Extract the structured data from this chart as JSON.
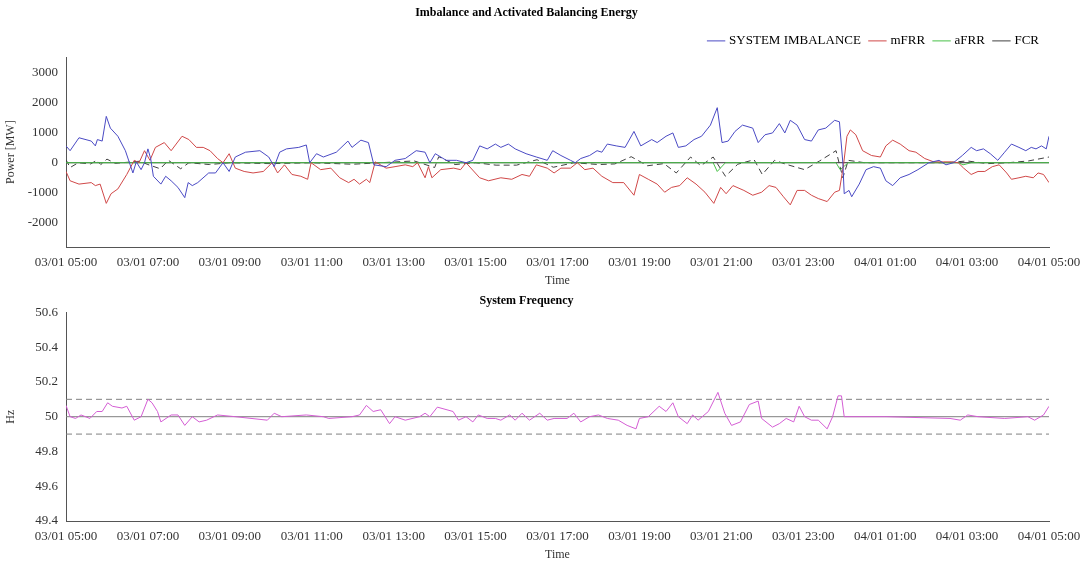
{
  "chart_data": [
    {
      "type": "line",
      "title": "Imbalance and Activated Balancing Energy",
      "xlabel": "Time",
      "ylabel": "Power [MW]",
      "marker": "none",
      "legend": "top right",
      "xlim": [
        "--01-03T05:00",
        "--01-04T05:00"
      ],
      "xticks": [
        {
          "value": "--01-03T05:00",
          "label": "03/01 05:00"
        },
        {
          "value": "--01-03T07:00",
          "label": "03/01 07:00"
        },
        {
          "value": "--01-03T09:00",
          "label": "03/01 09:00"
        },
        {
          "value": "--01-03T11:00",
          "label": "03/01 11:00"
        },
        {
          "value": "--01-03T13:00",
          "label": "03/01 13:00"
        },
        {
          "value": "--01-03T15:00",
          "label": "03/01 15:00"
        },
        {
          "value": "--01-03T17:00",
          "label": "03/01 17:00"
        },
        {
          "value": "--01-03T19:00",
          "label": "03/01 19:00"
        },
        {
          "value": "--01-03T21:00",
          "label": "03/01 21:00"
        },
        {
          "value": "--01-03T23:00",
          "label": "03/01 23:00"
        },
        {
          "value": "--01-04T01:00",
          "label": "04/01 01:00"
        },
        {
          "value": "--01-04T03:00",
          "label": "04/01 03:00"
        },
        {
          "value": "--01-04T05:00",
          "label": "04/01 05:00"
        }
      ],
      "ylim": [
        -2800,
        3500
      ],
      "yticks": [
        -2000,
        -1000,
        0,
        1000,
        2000,
        3000
      ],
      "ref_lines": [
        {
          "axis": "y",
          "value": 0,
          "color": "#303030",
          "line_style": "solid"
        }
      ],
      "series": [
        {
          "name": "SYSTEM IMBALANCE",
          "color": "#4a4ac4",
          "line_style": "solid",
          "x": [
            "--01-03T05:00",
            "--01-03T05:06",
            "--01-03T05:19",
            "--01-03T05:37",
            "--01-03T05:43",
            "--01-03T05:46",
            "--01-03T05:53",
            "--01-03T05:59",
            "--01-03T06:05",
            "--01-03T06:16",
            "--01-03T06:27",
            "--01-03T06:38",
            "--01-03T06:43",
            "--01-03T06:50",
            "--01-03T06:55",
            "--01-03T07:00",
            "--01-03T07:04",
            "--01-03T07:08",
            "--01-03T07:19",
            "--01-03T07:26",
            "--01-03T07:34",
            "--01-03T07:44",
            "--01-03T07:54",
            "--01-03T07:59",
            "--01-03T08:05",
            "--01-03T08:13",
            "--01-03T08:29",
            "--01-03T08:39",
            "--01-03T08:50",
            "--01-03T08:59",
            "--01-03T09:08",
            "--01-03T09:23",
            "--01-03T09:44",
            "--01-03T09:57",
            "--01-03T10:05",
            "--01-03T10:13",
            "--01-03T10:23",
            "--01-03T10:41",
            "--01-03T10:52",
            "--01-03T10:57",
            "--01-03T11:07",
            "--01-03T11:17",
            "--01-03T11:36",
            "--01-03T11:53",
            "--01-03T11:59",
            "--01-03T12:12",
            "--01-03T12:23",
            "--01-03T12:31",
            "--01-03T12:49",
            "--01-03T13:02",
            "--01-03T13:17",
            "--01-03T13:33",
            "--01-03T13:46",
            "--01-03T13:53",
            "--01-03T14:01",
            "--01-03T14:17",
            "--01-03T14:32",
            "--01-03T14:46",
            "--01-03T14:56",
            "--01-03T15:06",
            "--01-03T15:17",
            "--01-03T15:29",
            "--01-03T15:37",
            "--01-03T15:48",
            "--01-03T15:58",
            "--01-03T16:14",
            "--01-03T16:29",
            "--01-03T16:45",
            "--01-03T16:53",
            "--01-03T17:05",
            "--01-03T17:19",
            "--01-03T17:26",
            "--01-03T17:34",
            "--01-03T17:47",
            "--01-03T17:58",
            "--01-03T18:05",
            "--01-03T18:13",
            "--01-03T18:26",
            "--01-03T18:39",
            "--01-03T18:52",
            "--01-03T19:02",
            "--01-03T19:18",
            "--01-03T19:26",
            "--01-03T19:39",
            "--01-03T19:49",
            "--01-03T19:57",
            "--01-03T20:08",
            "--01-03T20:20",
            "--01-03T20:31",
            "--01-03T20:44",
            "--01-03T20:54",
            "--01-03T21:01",
            "--01-03T21:10",
            "--01-03T21:20",
            "--01-03T21:31",
            "--01-03T21:46",
            "--01-03T21:54",
            "--01-03T22:04",
            "--01-03T22:15",
            "--01-03T22:25",
            "--01-03T22:33",
            "--01-03T22:41",
            "--01-03T22:51",
            "--01-03T23:02",
            "--01-03T23:12",
            "--01-03T23:22",
            "--01-03T23:33",
            "--01-03T23:46",
            "--01-03T23:53",
            "--01-03T23:58",
            "--01-04T00:00",
            "--01-04T00:07",
            "--01-04T00:11",
            "--01-04T00:22",
            "--01-04T00:32",
            "--01-04T00:43",
            "--01-04T00:53",
            "--01-04T01:01",
            "--01-04T01:11",
            "--01-04T01:22",
            "--01-04T01:35",
            "--01-04T01:48",
            "--01-04T02:04",
            "--01-04T02:19",
            "--01-04T02:29",
            "--01-04T02:40",
            "--01-04T02:53",
            "--01-04T03:06",
            "--01-04T03:14",
            "--01-04T03:24",
            "--01-04T03:34",
            "--01-04T03:45",
            "--01-04T03:55",
            "--01-04T04:05",
            "--01-04T04:16",
            "--01-04T04:26",
            "--01-04T04:34",
            "--01-04T04:41",
            "--01-04T04:49",
            "--01-04T04:56",
            "--01-04T05:00"
          ],
          "values": [
            560,
            400,
            830,
            720,
            560,
            770,
            720,
            1540,
            1150,
            880,
            400,
            -340,
            30,
            -230,
            0,
            460,
            140,
            -450,
            -710,
            -450,
            -600,
            -820,
            -1160,
            -660,
            -760,
            -660,
            -340,
            -340,
            0,
            -290,
            190,
            350,
            400,
            190,
            -130,
            350,
            460,
            510,
            590,
            0,
            300,
            190,
            350,
            720,
            510,
            750,
            670,
            -70,
            -130,
            80,
            140,
            400,
            350,
            0,
            300,
            80,
            80,
            0,
            80,
            560,
            460,
            620,
            510,
            620,
            460,
            300,
            190,
            80,
            400,
            240,
            80,
            0,
            140,
            240,
            400,
            350,
            620,
            560,
            510,
            1040,
            560,
            770,
            670,
            880,
            990,
            510,
            560,
            770,
            880,
            1250,
            1830,
            670,
            720,
            1040,
            1250,
            1150,
            670,
            930,
            990,
            1300,
            990,
            1410,
            1250,
            770,
            720,
            1090,
            1150,
            1410,
            1360,
            0,
            -1030,
            -920,
            -1130,
            -710,
            -230,
            -130,
            -180,
            -600,
            -760,
            -500,
            -390,
            -230,
            0,
            80,
            -70,
            0,
            240,
            510,
            400,
            460,
            300,
            80,
            350,
            620,
            510,
            400,
            510,
            460,
            560,
            460,
            880
          ]
        },
        {
          "name": "mFRR",
          "color": "#d04848",
          "line_style": "solid",
          "x": [
            "--01-03T05:00",
            "--01-03T05:06",
            "--01-03T05:19",
            "--01-03T05:37",
            "--01-03T05:43",
            "--01-03T05:50",
            "--01-03T05:59",
            "--01-03T06:06",
            "--01-03T06:16",
            "--01-03T06:29",
            "--01-03T06:40",
            "--01-03T06:47",
            "--01-03T06:55",
            "--01-03T07:03",
            "--01-03T07:11",
            "--01-03T07:24",
            "--01-03T07:34",
            "--01-03T07:50",
            "--01-03T08:00",
            "--01-03T08:11",
            "--01-03T08:21",
            "--01-03T08:31",
            "--01-03T08:42",
            "--01-03T08:50",
            "--01-03T08:59",
            "--01-03T09:08",
            "--01-03T09:21",
            "--01-03T09:34",
            "--01-03T09:49",
            "--01-03T10:02",
            "--01-03T10:10",
            "--01-03T10:20",
            "--01-03T10:31",
            "--01-03T10:44",
            "--01-03T10:54",
            "--01-03T10:59",
            "--01-03T11:13",
            "--01-03T11:28",
            "--01-03T11:41",
            "--01-03T11:54",
            "--01-03T12:02",
            "--01-03T12:10",
            "--01-03T12:20",
            "--01-03T12:25",
            "--01-03T12:33",
            "--01-03T12:49",
            "--01-03T13:02",
            "--01-03T13:17",
            "--01-03T13:28",
            "--01-03T13:35",
            "--01-03T13:46",
            "--01-03T13:51",
            "--01-03T13:56",
            "--01-03T14:09",
            "--01-03T14:28",
            "--01-03T14:38",
            "--01-03T14:46",
            "--01-03T15:06",
            "--01-03T15:19",
            "--01-03T15:37",
            "--01-03T15:53",
            "--01-03T16:08",
            "--01-03T16:19",
            "--01-03T16:29",
            "--01-03T16:45",
            "--01-03T16:55",
            "--01-03T17:05",
            "--01-03T17:19",
            "--01-03T17:29",
            "--01-03T17:40",
            "--01-03T17:52",
            "--01-03T18:05",
            "--01-03T18:21",
            "--01-03T18:37",
            "--01-03T18:52",
            "--01-03T19:00",
            "--01-03T19:13",
            "--01-03T19:26",
            "--01-03T19:37",
            "--01-03T19:47",
            "--01-03T19:59",
            "--01-03T20:10",
            "--01-03T20:23",
            "--01-03T20:36",
            "--01-03T20:49",
            "--01-03T20:59",
            "--01-03T21:07",
            "--01-03T21:17",
            "--01-03T21:33",
            "--01-03T21:46",
            "--01-03T21:59",
            "--01-03T22:10",
            "--01-03T22:20",
            "--01-03T22:31",
            "--01-03T22:41",
            "--01-03T22:51",
            "--01-03T23:02",
            "--01-03T23:12",
            "--01-03T23:22",
            "--01-03T23:35",
            "--01-03T23:46",
            "--01-03T23:53",
            "--01-03T23:59",
            "--01-04T00:04",
            "--01-04T00:09",
            "--01-04T00:17",
            "--01-04T00:27",
            "--01-04T00:40",
            "--01-04T00:53",
            "--01-04T01:01",
            "--01-04T01:11",
            "--01-04T01:22",
            "--01-04T01:35",
            "--01-04T01:45",
            "--01-04T01:58",
            "--01-04T02:11",
            "--01-04T02:25",
            "--01-04T02:37",
            "--01-04T02:47",
            "--01-04T02:55",
            "--01-04T03:06",
            "--01-04T03:16",
            "--01-04T03:26",
            "--01-04T03:37",
            "--01-04T03:47",
            "--01-04T03:58",
            "--01-04T04:05",
            "--01-04T04:16",
            "--01-04T04:26",
            "--01-04T04:37",
            "--01-04T04:44",
            "--01-04T04:52",
            "--01-04T05:00"
          ],
          "values": [
            -290,
            -600,
            -710,
            -660,
            -760,
            -710,
            -1350,
            -1030,
            -870,
            -390,
            80,
            0,
            400,
            80,
            510,
            670,
            400,
            880,
            770,
            510,
            510,
            400,
            140,
            0,
            300,
            -180,
            -290,
            -340,
            -290,
            0,
            -340,
            -70,
            -390,
            -450,
            -550,
            0,
            -230,
            -180,
            -500,
            -660,
            -550,
            -710,
            -550,
            -660,
            30,
            -180,
            -130,
            -70,
            -130,
            0,
            -500,
            -130,
            -500,
            -230,
            -180,
            -230,
            0,
            -500,
            -600,
            -500,
            -550,
            -390,
            -450,
            -70,
            -180,
            -340,
            -180,
            -180,
            0,
            -230,
            -180,
            -450,
            -660,
            -660,
            -1080,
            -390,
            -550,
            -710,
            -980,
            -820,
            -760,
            -500,
            -710,
            -980,
            -1350,
            -820,
            -1030,
            -760,
            -920,
            -1080,
            -980,
            -760,
            -820,
            -1130,
            -1400,
            -920,
            -920,
            -1080,
            -1190,
            -1290,
            -980,
            -920,
            -70,
            880,
            1090,
            930,
            400,
            240,
            190,
            560,
            750,
            620,
            400,
            350,
            140,
            30,
            30,
            30,
            0,
            -180,
            -390,
            -290,
            -290,
            -130,
            -70,
            -340,
            -550,
            -500,
            -450,
            -500,
            -340,
            -390,
            -660
          ]
        },
        {
          "name": "aFRR",
          "color": "#48c048",
          "line_style": "solid",
          "x": [
            "--01-03T05:00",
            "--01-03T09:00",
            "--01-03T15:00",
            "--01-03T17:00",
            "--01-03T20:48",
            "--01-03T20:54",
            "--01-03T21:06",
            "--01-03T23:48",
            "--01-03T23:54",
            "--01-04T00:06",
            "--01-04T02:48",
            "--01-04T02:54",
            "--01-04T03:06",
            "--01-04T05:00"
          ],
          "values": [
            0,
            0,
            0,
            0,
            0,
            -290,
            0,
            0,
            -230,
            0,
            0,
            -70,
            0,
            0
          ]
        },
        {
          "name": "FCR",
          "color": "#404040",
          "line_style": "dashed",
          "x": [
            "--01-03T05:00",
            "--01-03T05:06",
            "--01-03T05:18",
            "--01-03T05:36",
            "--01-03T05:45",
            "--01-03T05:51",
            "--01-03T06:00",
            "--01-03T06:12",
            "--01-03T06:48",
            "--01-03T07:00",
            "--01-03T07:18",
            "--01-03T07:30",
            "--01-03T07:48",
            "--01-03T08:00",
            "--01-03T08:30",
            "--01-03T09:00",
            "--01-03T10:00",
            "--01-03T11:00",
            "--01-03T12:00",
            "--01-03T13:30",
            "--01-03T14:00",
            "--01-03T14:06",
            "--01-03T14:30",
            "--01-03T15:00",
            "--01-03T15:30",
            "--01-03T16:00",
            "--01-03T16:30",
            "--01-03T16:54",
            "--01-03T17:24",
            "--01-03T18:00",
            "--01-03T18:24",
            "--01-03T18:48",
            "--01-03T19:12",
            "--01-03T19:36",
            "--01-03T19:54",
            "--01-03T20:15",
            "--01-03T20:30",
            "--01-03T20:48",
            "--01-03T21:06",
            "--01-03T21:24",
            "--01-03T21:48",
            "--01-03T22:00",
            "--01-03T22:18",
            "--01-03T22:36",
            "--01-03T23:02",
            "--01-03T23:24",
            "--01-03T23:48",
            "--01-03T23:58",
            "--01-04T00:06",
            "--01-04T00:30",
            "--01-04T02:30",
            "--01-04T03:00",
            "--01-04T03:30",
            "--01-04T04:00",
            "--01-04T04:30",
            "--01-04T05:00"
          ],
          "values": [
            100,
            -160,
            0,
            -40,
            80,
            -60,
            120,
            -20,
            50,
            -60,
            -200,
            80,
            -200,
            0,
            -60,
            0,
            -30,
            0,
            -50,
            60,
            -160,
            200,
            -60,
            0,
            -80,
            -80,
            100,
            -150,
            0,
            -60,
            -40,
            200,
            -100,
            -30,
            -340,
            190,
            -100,
            190,
            -450,
            -50,
            100,
            -390,
            80,
            -60,
            -230,
            60,
            400,
            -500,
            80,
            0,
            0,
            60,
            -30,
            0,
            60,
            190
          ]
        }
      ]
    },
    {
      "type": "line",
      "title": "System Frequency",
      "xlabel": "Time",
      "ylabel": "Hz",
      "marker": "none",
      "xlim": [
        "--01-03T05:00",
        "--01-04T05:00"
      ],
      "xticks": [
        {
          "value": "--01-03T05:00",
          "label": "03/01 05:00"
        },
        {
          "value": "--01-03T07:00",
          "label": "03/01 07:00"
        },
        {
          "value": "--01-03T09:00",
          "label": "03/01 09:00"
        },
        {
          "value": "--01-03T11:00",
          "label": "03/01 11:00"
        },
        {
          "value": "--01-03T13:00",
          "label": "03/01 13:00"
        },
        {
          "value": "--01-03T15:00",
          "label": "03/01 15:00"
        },
        {
          "value": "--01-03T17:00",
          "label": "03/01 17:00"
        },
        {
          "value": "--01-03T19:00",
          "label": "03/01 19:00"
        },
        {
          "value": "--01-03T21:00",
          "label": "03/01 21:00"
        },
        {
          "value": "--01-03T23:00",
          "label": "03/01 23:00"
        },
        {
          "value": "--01-04T01:00",
          "label": "04/01 01:00"
        },
        {
          "value": "--01-04T03:00",
          "label": "04/01 03:00"
        },
        {
          "value": "--01-04T05:00",
          "label": "04/01 05:00"
        }
      ],
      "ylim": [
        49.4,
        50.6
      ],
      "yticks": [
        49.4,
        49.6,
        49.8,
        50,
        50.2,
        50.4,
        50.6
      ],
      "ref_lines": [
        {
          "axis": "y",
          "value": 50,
          "color": "#808080",
          "line_style": "solid"
        },
        {
          "axis": "y",
          "value": 50.1,
          "color": "#808080",
          "line_style": "dashed"
        },
        {
          "axis": "y",
          "value": 49.9,
          "color": "#808080",
          "line_style": "dashed"
        }
      ],
      "series": [
        {
          "color": "#d45ed4",
          "line_style": "solid",
          "x": [
            "--01-03T05:00",
            "--01-03T05:06",
            "--01-03T05:14",
            "--01-03T05:22",
            "--01-03T05:35",
            "--01-03T05:45",
            "--01-03T05:53",
            "--01-03T06:01",
            "--01-03T06:08",
            "--01-03T06:22",
            "--01-03T06:29",
            "--01-03T06:40",
            "--01-03T06:50",
            "--01-03T07:00",
            "--01-03T07:06",
            "--01-03T07:14",
            "--01-03T07:19",
            "--01-03T07:34",
            "--01-03T07:44",
            "--01-03T07:54",
            "--01-03T08:05",
            "--01-03T08:15",
            "--01-03T08:26",
            "--01-03T08:42",
            "--01-03T09:08",
            "--01-03T09:55",
            "--01-03T10:05",
            "--01-03T10:16",
            "--01-03T10:52",
            "--01-03T11:17",
            "--01-03T11:25",
            "--01-03T11:59",
            "--01-03T12:10",
            "--01-03T12:20",
            "--01-03T12:30",
            "--01-03T12:41",
            "--01-03T12:54",
            "--01-03T13:02",
            "--01-03T13:17",
            "--01-03T13:38",
            "--01-03T13:46",
            "--01-03T13:53",
            "--01-03T14:04",
            "--01-03T14:27",
            "--01-03T14:35",
            "--01-03T14:46",
            "--01-03T14:56",
            "--01-03T15:04",
            "--01-03T15:17",
            "--01-03T15:29",
            "--01-03T15:37",
            "--01-03T15:50",
            "--01-03T15:58",
            "--01-03T16:08",
            "--01-03T16:19",
            "--01-03T16:34",
            "--01-03T16:45",
            "--01-03T16:55",
            "--01-03T17:14",
            "--01-03T17:24",
            "--01-03T17:34",
            "--01-03T17:47",
            "--01-03T18:00",
            "--01-03T18:13",
            "--01-03T18:29",
            "--01-03T18:42",
            "--01-03T18:55",
            "--01-03T19:00",
            "--01-03T19:13",
            "--01-03T19:29",
            "--01-03T19:39",
            "--01-03T19:49",
            "--01-03T19:57",
            "--01-03T20:10",
            "--01-03T20:18",
            "--01-03T20:26",
            "--01-03T20:41",
            "--01-03T20:55",
            "--01-03T21:05",
            "--01-03T21:15",
            "--01-03T21:28",
            "--01-03T21:41",
            "--01-03T21:54",
            "--01-03T21:59",
            "--01-03T22:15",
            "--01-03T22:25",
            "--01-03T22:35",
            "--01-03T22:46",
            "--01-03T22:54",
            "--01-03T23:02",
            "--01-03T23:12",
            "--01-03T23:22",
            "--01-03T23:35",
            "--01-03T23:43",
            "--01-03T23:51",
            "--01-03T23:56",
            "--01-04T00:00",
            "--01-04T01:01",
            "--01-04T02:35",
            "--01-04T02:50",
            "--01-04T03:01",
            "--01-04T03:16",
            "--01-04T03:55",
            "--01-04T04:29",
            "--01-04T04:39",
            "--01-04T04:52",
            "--01-04T05:00"
          ],
          "values": [
            50.065,
            50,
            49.99,
            50.01,
            49.99,
            50.03,
            50.03,
            50.08,
            50.06,
            50.05,
            50.06,
            49.98,
            50,
            50.1,
            50.08,
            50.03,
            49.97,
            50.01,
            50.01,
            49.95,
            50,
            49.97,
            49.98,
            50.01,
            50,
            49.98,
            50.02,
            50,
            50.01,
            50,
            49.99,
            50,
            50.01,
            50.065,
            50.03,
            50.04,
            49.96,
            50,
            49.98,
            50,
            50.02,
            50,
            50.055,
            50.03,
            49.98,
            50,
            49.97,
            50.01,
            49.99,
            49.99,
            49.98,
            50.01,
            49.98,
            50.02,
            49.98,
            50.02,
            49.98,
            49.99,
            49.99,
            50.02,
            49.97,
            50,
            50.01,
            49.99,
            49.98,
            49.95,
            49.93,
            49.99,
            50,
            50.06,
            50.03,
            50.08,
            50,
            49.96,
            50.01,
            49.98,
            50.03,
            50.14,
            50.02,
            49.95,
            49.97,
            50.07,
            50.09,
            49.99,
            49.94,
            49.96,
            49.99,
            49.97,
            50.06,
            50,
            49.98,
            49.98,
            49.93,
            50,
            50.12,
            50.12,
            50,
            50,
            49.99,
            49.98,
            50.01,
            50,
            49.99,
            50,
            49.98,
            50.01,
            50.06
          ]
        }
      ]
    }
  ]
}
